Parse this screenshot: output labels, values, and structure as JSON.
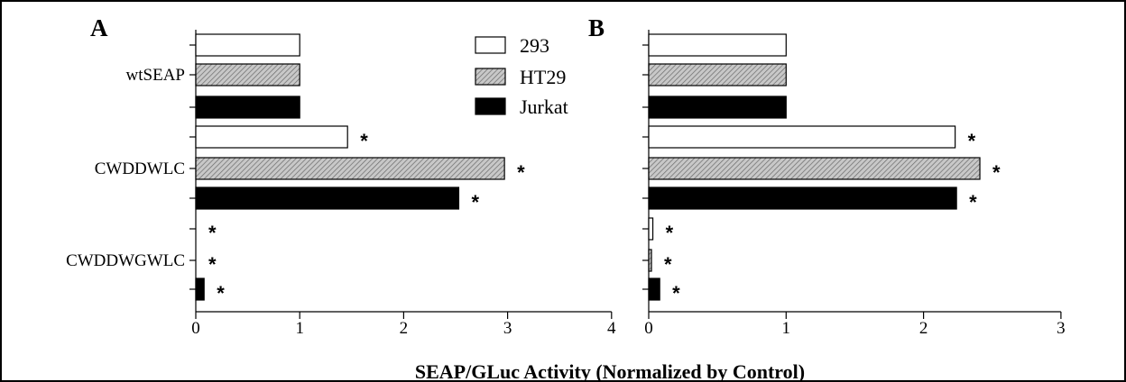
{
  "xlabel": "SEAP/GLuc Activity (Normalized by Control)",
  "legend": [
    {
      "label": "293",
      "fill": "white"
    },
    {
      "label": "HT29",
      "fill": "hatch"
    },
    {
      "label": "Jurkat",
      "fill": "black"
    }
  ],
  "colors": {
    "frame": "#000000",
    "bar_dark": "#000000",
    "bar_light": "#ffffff",
    "hatch_base": "#bdbdbd"
  },
  "chart_data": [
    {
      "type": "bar",
      "orientation": "horizontal",
      "panel": "A",
      "categories": [
        "wtSEAP",
        "CWDDWLC",
        "CWDDWGWLC"
      ],
      "series": [
        {
          "name": "293",
          "values": [
            1.0,
            1.46,
            0.0
          ]
        },
        {
          "name": "HT29",
          "values": [
            1.0,
            2.97,
            0.0
          ]
        },
        {
          "name": "Jurkat",
          "values": [
            1.0,
            2.53,
            0.08
          ]
        }
      ],
      "significance": [
        [
          false,
          true,
          true
        ],
        [
          false,
          true,
          true
        ],
        [
          false,
          true,
          true
        ]
      ],
      "xlim": [
        0,
        4
      ],
      "xticks": [
        "0",
        "1",
        "2",
        "3",
        "4"
      ]
    },
    {
      "type": "bar",
      "orientation": "horizontal",
      "panel": "B",
      "categories": [
        "wtSEAP",
        "CWDDWLC",
        "CWDDWGWLC"
      ],
      "series": [
        {
          "name": "293",
          "values": [
            1.0,
            2.23,
            0.03
          ]
        },
        {
          "name": "HT29",
          "values": [
            1.0,
            2.41,
            0.02
          ]
        },
        {
          "name": "Jurkat",
          "values": [
            1.0,
            2.24,
            0.08
          ]
        }
      ],
      "significance": [
        [
          false,
          true,
          true
        ],
        [
          false,
          true,
          true
        ],
        [
          false,
          true,
          true
        ]
      ],
      "xlim": [
        0,
        3
      ],
      "xticks": [
        "0",
        "1",
        "2",
        "3"
      ]
    }
  ]
}
